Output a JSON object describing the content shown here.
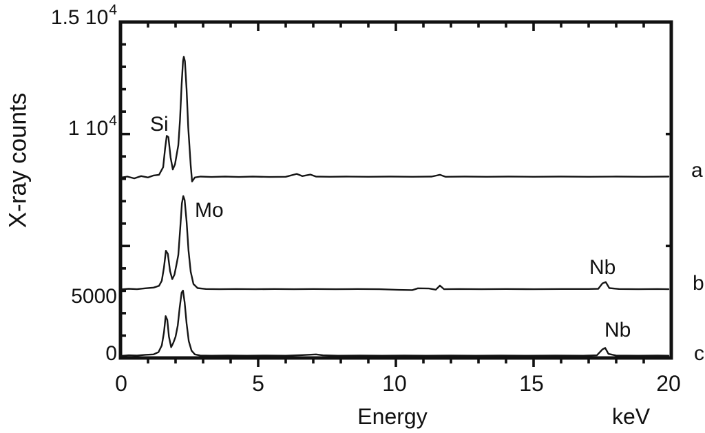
{
  "chart_data": {
    "type": "line",
    "title": "",
    "xlabel": "Energy",
    "x_unit": "keV",
    "ylabel": "X-ray counts",
    "xlim": [
      0,
      20
    ],
    "ylim": [
      0,
      15000
    ],
    "grid": false,
    "x_tick_labels": [
      "0",
      "5",
      "10",
      "15",
      "20"
    ],
    "x_major_ticks": [
      5,
      10,
      15
    ],
    "x_minor_step": 1,
    "y_major_ticks": [
      5000,
      10000
    ],
    "y_minor_step": 1000,
    "y_tick_labels": [
      {
        "value": 15000,
        "base": "1.5 10",
        "exp": "4"
      },
      {
        "value": 10000,
        "base": "1 10",
        "exp": "4"
      },
      {
        "value": 5000,
        "text": "5000"
      },
      {
        "value": 0,
        "text": "0"
      }
    ],
    "annotations": [
      {
        "label": "Si",
        "x": 1.5,
        "y": 10800,
        "series": "a"
      },
      {
        "label": "Mo",
        "x": 2.75,
        "y": 7100,
        "series": "b"
      },
      {
        "label": "Nb",
        "x": 17.2,
        "y": 4400,
        "series": "b"
      },
      {
        "label": "Nb",
        "x": 17.8,
        "y": 1750,
        "series": "c"
      }
    ],
    "series": [
      {
        "name": "a",
        "baseline_offset_counts": 8100,
        "points": [
          [
            0,
            8050
          ],
          [
            0.25,
            8100
          ],
          [
            0.5,
            8020
          ],
          [
            0.75,
            8120
          ],
          [
            1.0,
            8060
          ],
          [
            1.2,
            8150
          ],
          [
            1.4,
            8180
          ],
          [
            1.55,
            8520
          ],
          [
            1.62,
            9350
          ],
          [
            1.68,
            9920
          ],
          [
            1.74,
            9860
          ],
          [
            1.82,
            8950
          ],
          [
            1.9,
            8420
          ],
          [
            1.98,
            8650
          ],
          [
            2.05,
            9150
          ],
          [
            2.1,
            9500
          ],
          [
            2.16,
            10600
          ],
          [
            2.22,
            12200
          ],
          [
            2.27,
            13250
          ],
          [
            2.3,
            13450
          ],
          [
            2.34,
            13250
          ],
          [
            2.4,
            12000
          ],
          [
            2.46,
            10300
          ],
          [
            2.55,
            8600
          ],
          [
            2.6,
            7880
          ],
          [
            2.7,
            8060
          ],
          [
            2.9,
            8100
          ],
          [
            3.3,
            8080
          ],
          [
            3.8,
            8100
          ],
          [
            4.3,
            8080
          ],
          [
            4.8,
            8100
          ],
          [
            5.4,
            8080
          ],
          [
            6.0,
            8090
          ],
          [
            6.4,
            8220
          ],
          [
            6.6,
            8120
          ],
          [
            6.9,
            8190
          ],
          [
            7.1,
            8100
          ],
          [
            7.6,
            8090
          ],
          [
            8.2,
            8100
          ],
          [
            9.0,
            8090
          ],
          [
            9.8,
            8100
          ],
          [
            10.6,
            8090
          ],
          [
            11.3,
            8100
          ],
          [
            11.6,
            8180
          ],
          [
            11.8,
            8090
          ],
          [
            12.5,
            8100
          ],
          [
            13.3,
            8090
          ],
          [
            14.1,
            8100
          ],
          [
            15.0,
            8090
          ],
          [
            16.0,
            8100
          ],
          [
            17.0,
            8090
          ],
          [
            18.0,
            8100
          ],
          [
            19.0,
            8090
          ],
          [
            19.9,
            8100
          ]
        ]
      },
      {
        "name": "b",
        "baseline_offset_counts": 3080,
        "points": [
          [
            0,
            3060
          ],
          [
            0.3,
            3090
          ],
          [
            0.6,
            3070
          ],
          [
            0.9,
            3110
          ],
          [
            1.2,
            3140
          ],
          [
            1.4,
            3220
          ],
          [
            1.5,
            3450
          ],
          [
            1.58,
            4050
          ],
          [
            1.65,
            4790
          ],
          [
            1.72,
            4650
          ],
          [
            1.8,
            3880
          ],
          [
            1.88,
            3520
          ],
          [
            1.96,
            3720
          ],
          [
            2.03,
            4150
          ],
          [
            2.1,
            4600
          ],
          [
            2.17,
            5800
          ],
          [
            2.23,
            6900
          ],
          [
            2.28,
            7230
          ],
          [
            2.33,
            7050
          ],
          [
            2.4,
            6100
          ],
          [
            2.47,
            4800
          ],
          [
            2.55,
            3850
          ],
          [
            2.65,
            3300
          ],
          [
            2.8,
            3120
          ],
          [
            3.1,
            3080
          ],
          [
            3.6,
            3070
          ],
          [
            4.2,
            3080
          ],
          [
            4.9,
            3070
          ],
          [
            5.6,
            3080
          ],
          [
            6.3,
            3070
          ],
          [
            7.0,
            3080
          ],
          [
            7.8,
            3070
          ],
          [
            8.6,
            3080
          ],
          [
            9.4,
            3070
          ],
          [
            10.1,
            3040
          ],
          [
            10.6,
            3030
          ],
          [
            10.8,
            3110
          ],
          [
            11.2,
            3100
          ],
          [
            11.45,
            3050
          ],
          [
            11.6,
            3230
          ],
          [
            11.75,
            3070
          ],
          [
            12.3,
            3080
          ],
          [
            13.1,
            3070
          ],
          [
            14.0,
            3080
          ],
          [
            15.0,
            3070
          ],
          [
            16.0,
            3080
          ],
          [
            17.0,
            3080
          ],
          [
            17.35,
            3090
          ],
          [
            17.5,
            3330
          ],
          [
            17.62,
            3390
          ],
          [
            17.75,
            3120
          ],
          [
            18.1,
            3080
          ],
          [
            18.8,
            3070
          ],
          [
            19.5,
            3080
          ],
          [
            19.9,
            3070
          ]
        ]
      },
      {
        "name": "c",
        "baseline_offset_counts": 100,
        "points": [
          [
            0,
            90
          ],
          [
            0.3,
            120
          ],
          [
            0.6,
            110
          ],
          [
            0.9,
            140
          ],
          [
            1.2,
            160
          ],
          [
            1.38,
            260
          ],
          [
            1.5,
            560
          ],
          [
            1.58,
            1150
          ],
          [
            1.64,
            1870
          ],
          [
            1.7,
            1700
          ],
          [
            1.76,
            950
          ],
          [
            1.84,
            480
          ],
          [
            1.92,
            680
          ],
          [
            2.0,
            950
          ],
          [
            2.08,
            1450
          ],
          [
            2.15,
            2250
          ],
          [
            2.22,
            2920
          ],
          [
            2.27,
            3010
          ],
          [
            2.33,
            2480
          ],
          [
            2.4,
            1550
          ],
          [
            2.48,
            750
          ],
          [
            2.58,
            330
          ],
          [
            2.7,
            160
          ],
          [
            2.9,
            110
          ],
          [
            3.3,
            100
          ],
          [
            3.9,
            110
          ],
          [
            4.6,
            100
          ],
          [
            5.3,
            110
          ],
          [
            6.0,
            100
          ],
          [
            6.6,
            130
          ],
          [
            7.1,
            160
          ],
          [
            7.35,
            120
          ],
          [
            7.9,
            100
          ],
          [
            8.7,
            110
          ],
          [
            9.5,
            100
          ],
          [
            10.3,
            110
          ],
          [
            11.1,
            100
          ],
          [
            12.0,
            110
          ],
          [
            12.9,
            100
          ],
          [
            13.8,
            110
          ],
          [
            14.8,
            100
          ],
          [
            15.8,
            110
          ],
          [
            16.8,
            100
          ],
          [
            17.3,
            120
          ],
          [
            17.5,
            380
          ],
          [
            17.6,
            450
          ],
          [
            17.72,
            180
          ],
          [
            18.0,
            110
          ],
          [
            18.8,
            100
          ],
          [
            19.5,
            110
          ],
          [
            19.9,
            100
          ]
        ]
      }
    ]
  }
}
